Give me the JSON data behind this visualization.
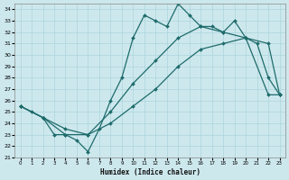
{
  "xlabel": "Humidex (Indice chaleur)",
  "xlim": [
    -0.5,
    23.5
  ],
  "ylim": [
    21,
    34.5
  ],
  "yticks": [
    21,
    22,
    23,
    24,
    25,
    26,
    27,
    28,
    29,
    30,
    31,
    32,
    33,
    34
  ],
  "xticks": [
    0,
    1,
    2,
    3,
    4,
    5,
    6,
    7,
    8,
    9,
    10,
    11,
    12,
    13,
    14,
    15,
    16,
    17,
    18,
    19,
    20,
    21,
    22,
    23
  ],
  "bg_color": "#cde8ed",
  "grid_color": "#b0d8df",
  "line_color": "#1e6b6b",
  "line1_x": [
    0,
    1,
    2,
    3,
    4,
    5,
    6,
    7,
    8,
    9,
    10,
    11,
    12,
    13,
    14,
    15,
    16,
    17,
    18,
    19,
    20,
    21,
    22,
    23
  ],
  "line1_y": [
    25.5,
    25.0,
    24.5,
    23.0,
    23.0,
    22.5,
    21.5,
    23.5,
    26.0,
    28.0,
    31.5,
    33.5,
    33.0,
    32.5,
    34.5,
    33.5,
    32.5,
    32.5,
    32.0,
    33.0,
    31.5,
    31.0,
    28.0,
    26.5
  ],
  "line2_x": [
    0,
    2,
    4,
    6,
    8,
    10,
    12,
    14,
    16,
    18,
    20,
    22,
    23
  ],
  "line2_y": [
    25.5,
    24.5,
    23.0,
    23.0,
    25.0,
    27.5,
    29.5,
    31.5,
    32.5,
    32.0,
    31.5,
    31.0,
    26.5
  ],
  "line3_x": [
    0,
    2,
    4,
    6,
    8,
    10,
    12,
    14,
    16,
    18,
    20,
    22,
    23
  ],
  "line3_y": [
    25.5,
    24.5,
    23.5,
    23.0,
    24.0,
    25.5,
    27.0,
    29.0,
    30.5,
    31.0,
    31.5,
    26.5,
    26.5
  ],
  "marker": "D",
  "markersize": 2.0,
  "linewidth": 0.9
}
